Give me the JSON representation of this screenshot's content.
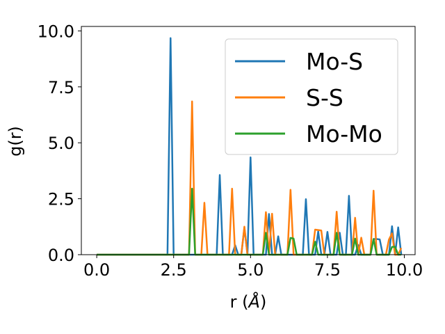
{
  "chart_data": {
    "type": "line",
    "xlabel": "r (",
    "xlabel_symbol": "Å",
    "xlabel_end": ")",
    "ylabel": "g(r)",
    "xlim": [
      -0.5,
      10.35
    ],
    "ylim": [
      0,
      10.2
    ],
    "xticks": [
      0.0,
      2.5,
      5.0,
      7.5,
      10.0
    ],
    "xtick_labels": [
      "0.0",
      "2.5",
      "5.0",
      "7.5",
      "10.0"
    ],
    "yticks": [
      0.0,
      2.5,
      5.0,
      7.5,
      10.0
    ],
    "ytick_labels": [
      "0.0",
      "2.5",
      "5.0",
      "7.5",
      "10.0"
    ],
    "grid": false,
    "legend_position": "top-right",
    "x": [
      0.0,
      0.1,
      0.2,
      0.3,
      0.4,
      0.5,
      0.6,
      0.7,
      0.8,
      0.9,
      1.0,
      1.1,
      1.2,
      1.3,
      1.4,
      1.5,
      1.6,
      1.7,
      1.8,
      1.9,
      2.0,
      2.1,
      2.2,
      2.3,
      2.4,
      2.5,
      2.6,
      2.7,
      2.8,
      2.9,
      3.0,
      3.1,
      3.2,
      3.3,
      3.4,
      3.5,
      3.6,
      3.7,
      3.8,
      3.9,
      4.0,
      4.1,
      4.2,
      4.3,
      4.4,
      4.5,
      4.6,
      4.7,
      4.8,
      4.9,
      5.0,
      5.1,
      5.2,
      5.3,
      5.4,
      5.5,
      5.6,
      5.7,
      5.8,
      5.9,
      6.0,
      6.1,
      6.2,
      6.3,
      6.4,
      6.5,
      6.6,
      6.7,
      6.8,
      6.9,
      7.0,
      7.1,
      7.2,
      7.3,
      7.4,
      7.5,
      7.6,
      7.7,
      7.8,
      7.9,
      8.0,
      8.1,
      8.2,
      8.3,
      8.4,
      8.5,
      8.6,
      8.7,
      8.8,
      8.9,
      9.0,
      9.1,
      9.2,
      9.3,
      9.4,
      9.5,
      9.6,
      9.7,
      9.8,
      9.9
    ],
    "series": [
      {
        "name": "Mo-S",
        "color": "#1f77b4",
        "values": [
          0,
          0,
          0,
          0,
          0,
          0,
          0,
          0,
          0,
          0,
          0,
          0,
          0,
          0,
          0,
          0,
          0,
          0,
          0,
          0,
          0,
          0,
          0,
          0,
          9.68,
          0,
          0,
          0,
          0,
          0,
          0,
          0,
          0,
          0,
          0,
          0,
          0,
          0,
          0,
          0,
          3.56,
          0,
          0,
          0,
          0,
          0.42,
          0,
          0,
          1.2,
          0,
          4.35,
          0,
          0,
          0,
          0,
          0,
          1.82,
          0,
          0,
          0.82,
          0,
          0,
          0,
          0,
          0,
          0,
          0,
          0,
          2.48,
          0,
          0,
          0,
          1.04,
          0,
          0,
          1.02,
          0,
          0,
          0,
          0.98,
          0,
          0,
          2.63,
          0,
          0,
          0.43,
          0,
          0,
          0,
          0,
          0.7,
          0.7,
          0.68,
          0,
          0,
          0,
          1.27,
          0,
          1.22,
          0
        ]
      },
      {
        "name": "S-S",
        "color": "#ff7f0e",
        "values": [
          0,
          0,
          0,
          0,
          0,
          0,
          0,
          0,
          0,
          0,
          0,
          0,
          0,
          0,
          0,
          0,
          0,
          0,
          0,
          0,
          0,
          0,
          0,
          0,
          0,
          0,
          0,
          0,
          0,
          0,
          0,
          6.85,
          0,
          0,
          0,
          2.32,
          0,
          0,
          0,
          0,
          0,
          0,
          0,
          0,
          2.95,
          0,
          0,
          0,
          1.25,
          0,
          0,
          0,
          0,
          0,
          0,
          1.9,
          0,
          1.83,
          0,
          0,
          0,
          0,
          0,
          2.9,
          0,
          0,
          0,
          0,
          0,
          0,
          0,
          1.12,
          1.1,
          1.08,
          0,
          0,
          0,
          0,
          1.92,
          0,
          0,
          0,
          0,
          0,
          1.65,
          0,
          0.76,
          0,
          0,
          0,
          2.86,
          0,
          0,
          0,
          0,
          0.68,
          0.95,
          0,
          0,
          0.3
        ]
      },
      {
        "name": "Mo-Mo",
        "color": "#2ca02c",
        "values": [
          0,
          0,
          0,
          0,
          0,
          0,
          0,
          0,
          0,
          0,
          0,
          0,
          0,
          0,
          0,
          0,
          0,
          0,
          0,
          0,
          0,
          0,
          0,
          0,
          0,
          0,
          0,
          0,
          0,
          0,
          0,
          2.95,
          0,
          0,
          0,
          0,
          0,
          0,
          0,
          0,
          0,
          0,
          0,
          0,
          0,
          0,
          0,
          0,
          0,
          0,
          0,
          0,
          0,
          0,
          0,
          0.98,
          0,
          0,
          0,
          0,
          0,
          0,
          0,
          0.75,
          0.72,
          0,
          0,
          0,
          0,
          0,
          0,
          0.58,
          0,
          0,
          0,
          0,
          0,
          0,
          0.98,
          0,
          0,
          0,
          0,
          0,
          0.72,
          0,
          0,
          0,
          0,
          0,
          0.7,
          0,
          0,
          0,
          0,
          0,
          0.35,
          0.35,
          0,
          0
        ]
      }
    ]
  }
}
